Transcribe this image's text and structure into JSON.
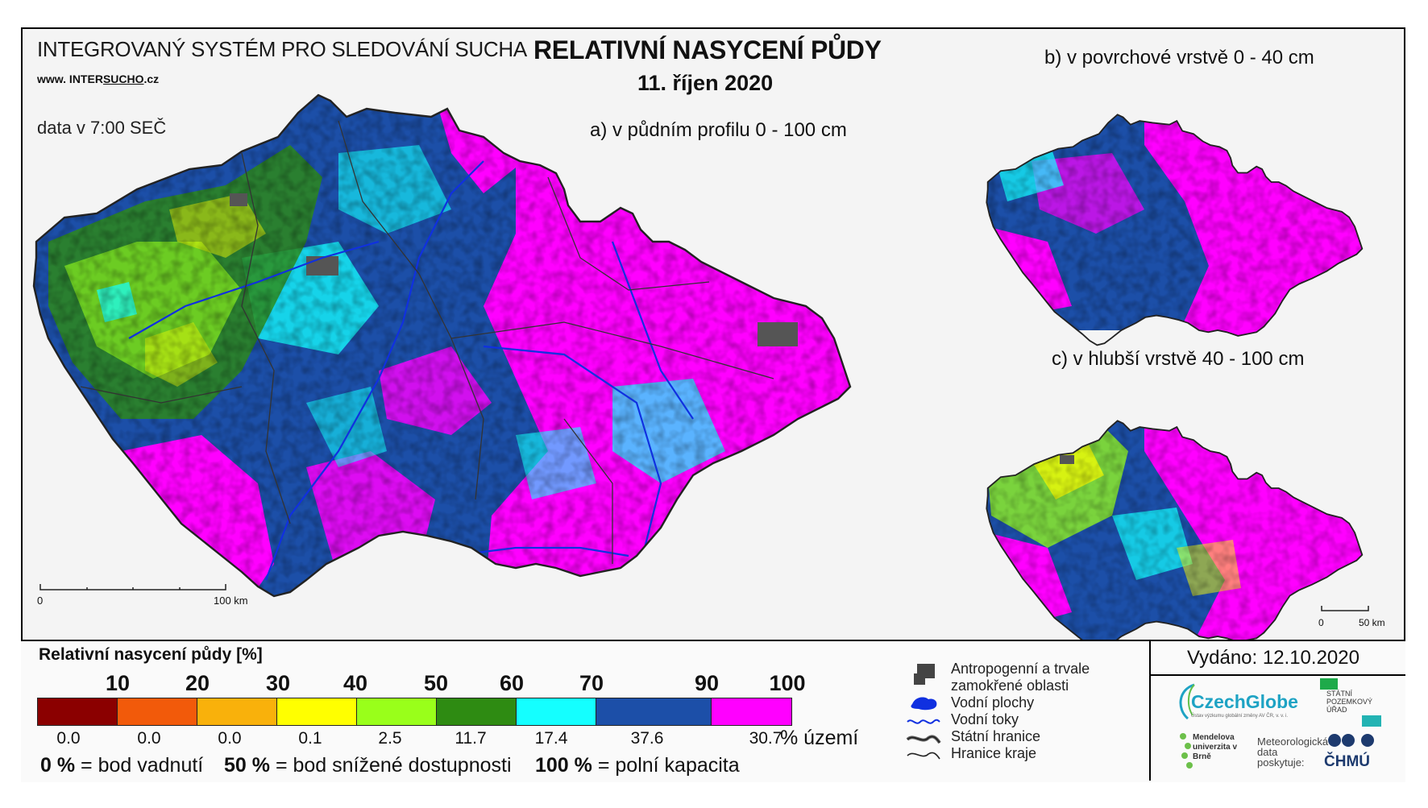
{
  "header": {
    "system": "INTEGROVANÝ SYSTÉM PRO SLEDOVÁNÍ SUCHA",
    "www_prefix": "www. INTER",
    "www_mid": "SUCHO",
    "www_suffix": ".cz",
    "data_time": "data v 7:00 SEČ",
    "title": "RELATIVNÍ NASYCENÍ PŮDY",
    "date": "11. říjen 2020"
  },
  "maps": {
    "a_label": "a) v půdním profilu 0 - 100 cm",
    "b_label": "b) v povrchové vrstvě 0 - 40 cm",
    "c_label": "c) v hlubší vrstvě 40 - 100 cm",
    "scale_main": [
      "0",
      "100 km"
    ],
    "scale_small": [
      "0",
      "50 km"
    ]
  },
  "legend": {
    "title": "Relativní nasycení půdy [%]",
    "ticks": [
      "10",
      "20",
      "30",
      "40",
      "50",
      "60",
      "70",
      "90",
      "100"
    ],
    "classes": [
      {
        "color": "#8b0000",
        "pct": "0.0"
      },
      {
        "color": "#f25a0a",
        "pct": "0.0"
      },
      {
        "color": "#f9b10b",
        "pct": "0.0"
      },
      {
        "color": "#ffff00",
        "pct": "0.1"
      },
      {
        "color": "#99ff1a",
        "pct": "2.5"
      },
      {
        "color": "#2e8b12",
        "pct": "11.7"
      },
      {
        "color": "#14ffff",
        "pct": "17.4"
      },
      {
        "color": "#1c4fa8",
        "pct": "37.6"
      },
      {
        "color": "#ff00ff",
        "pct": "30.7"
      }
    ],
    "unit": "% území",
    "note1_bold": "0 %",
    "note1": "= bod vadnutí",
    "note2_bold": "50 %",
    "note2": "= bod snížené dostupnosti",
    "note3_bold": "100 %",
    "note3": "= polní kapacita"
  },
  "symbols": {
    "antropo": "Antropogenní a trvale",
    "antropo2": "zamokřené oblasti",
    "water_bodies": "Vodní plochy",
    "streams": "Vodní toky",
    "border_state": "Státní hranice",
    "border_region": "Hranice kraje"
  },
  "footer": {
    "issued": "Vydáno: 12.10.2020",
    "czechglobe": "CzechGlobe",
    "czechglobe_sub": "Ústav výzkumu globální změny AV ČR, v. v. i.",
    "spu": "STÁTNÍ POZEMKOVÝ ÚŘAD",
    "mendel": "Mendelova univerzita v Brně",
    "meteo": "Meteorologická data poskytuje:",
    "chmu": "ČHMÚ"
  },
  "colors": {
    "magenta": "#ff00ff",
    "blue": "#1c4fa8",
    "cyan": "#14ffff",
    "green": "#2e8b12",
    "lightgreen": "#99ff1a",
    "yellow": "#ffff00",
    "river": "#1030e0",
    "anthropogenic": "#555555"
  }
}
